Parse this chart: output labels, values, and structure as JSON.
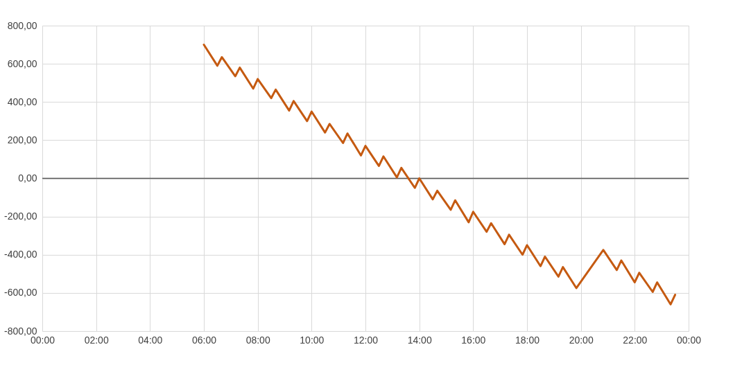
{
  "chart_data": {
    "type": "line",
    "line_style": "solid",
    "marker": "none",
    "grid": true,
    "x": [
      6,
      6.5,
      6.667,
      7.167,
      7.333,
      7.833,
      8,
      8.5,
      8.667,
      9.167,
      9.333,
      9.833,
      10,
      10.5,
      10.667,
      11.167,
      11.333,
      11.833,
      12,
      12.5,
      12.667,
      13.167,
      13.333,
      13.833,
      14,
      14.5,
      14.667,
      15.167,
      15.333,
      15.833,
      16,
      16.5,
      16.667,
      17.167,
      17.333,
      17.833,
      18,
      18.5,
      18.667,
      19.167,
      19.333,
      19.833,
      20.833,
      21.333,
      21.5,
      22,
      22.167,
      22.667,
      22.833,
      23.333,
      23.5
    ],
    "series": [
      {
        "color": "#c55a11",
        "values": [
          700,
          590,
          635,
          535,
          580,
          470,
          520,
          420,
          465,
          355,
          405,
          300,
          350,
          240,
          285,
          185,
          235,
          120,
          170,
          65,
          115,
          5,
          55,
          -50,
          0,
          -110,
          -65,
          -165,
          -115,
          -230,
          -175,
          -280,
          -235,
          -345,
          -295,
          -400,
          -350,
          -460,
          -410,
          -515,
          -465,
          -575,
          -375,
          -480,
          -430,
          -545,
          -495,
          -595,
          -545,
          -660,
          -610
        ]
      }
    ],
    "xlim": [
      0,
      24
    ],
    "xticks": [
      {
        "value": 0,
        "label": "00:00"
      },
      {
        "value": 2,
        "label": "02:00"
      },
      {
        "value": 4,
        "label": "04:00"
      },
      {
        "value": 6,
        "label": "06:00"
      },
      {
        "value": 8,
        "label": "08:00"
      },
      {
        "value": 10,
        "label": "10:00"
      },
      {
        "value": 12,
        "label": "12:00"
      },
      {
        "value": 14,
        "label": "14:00"
      },
      {
        "value": 16,
        "label": "16:00"
      },
      {
        "value": 18,
        "label": "18:00"
      },
      {
        "value": 20,
        "label": "20:00"
      },
      {
        "value": 22,
        "label": "22:00"
      },
      {
        "value": 24,
        "label": "00:00"
      }
    ],
    "ylim": [
      -800,
      800
    ],
    "yticks": [
      {
        "value": -800,
        "label": "-800,00"
      },
      {
        "value": -600,
        "label": "-600,00"
      },
      {
        "value": -400,
        "label": "-400,00"
      },
      {
        "value": -200,
        "label": "-200,00"
      },
      {
        "value": 0,
        "label": "0,00"
      },
      {
        "value": 200,
        "label": "200,00"
      },
      {
        "value": 400,
        "label": "400,00"
      },
      {
        "value": 600,
        "label": "600,00"
      },
      {
        "value": 800,
        "label": "800,00"
      }
    ],
    "ref_lines": [
      {
        "axis": "y",
        "value": 0,
        "color": "#595959"
      }
    ]
  }
}
